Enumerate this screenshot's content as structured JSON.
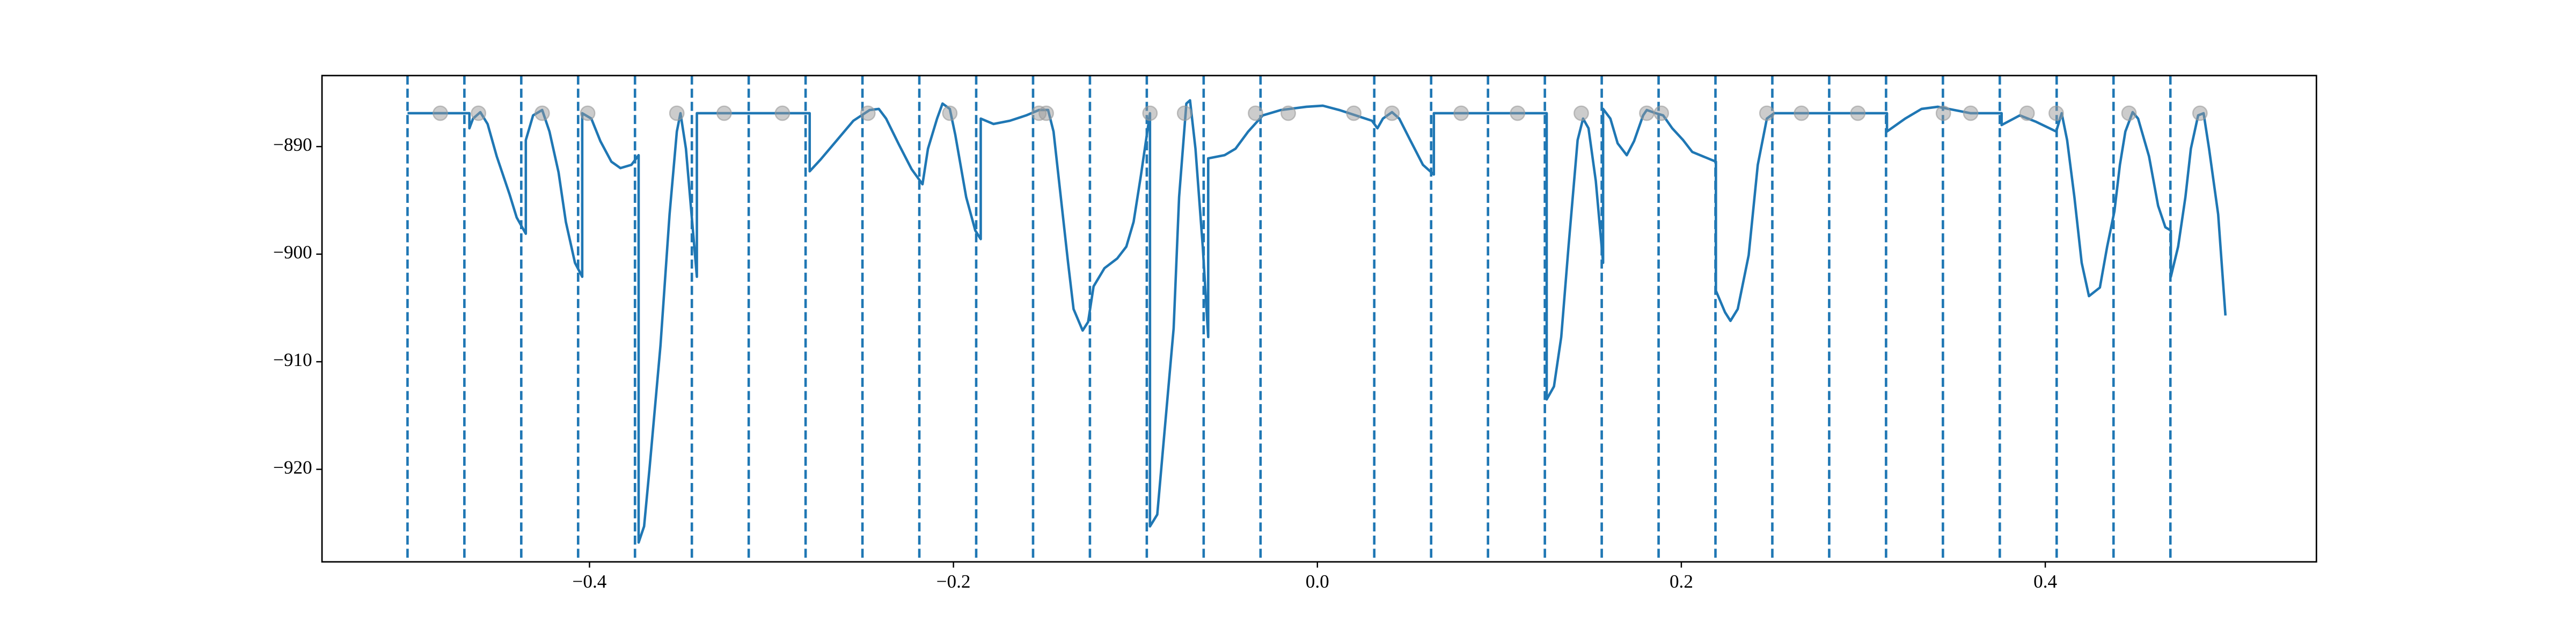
{
  "chart_data": {
    "type": "line",
    "xlim": [
      -0.547,
      0.549
    ],
    "ylim": [
      -928.6,
      -883.4
    ],
    "xticks": [
      {
        "value": -0.4,
        "label": "−0.4"
      },
      {
        "value": -0.2,
        "label": "−0.2"
      },
      {
        "value": 0.0,
        "label": "0.0"
      },
      0.2,
      0.4
    ],
    "yticks": [
      {
        "value": -890,
        "label": "−890"
      },
      {
        "value": -900,
        "label": "−900"
      },
      {
        "value": -910,
        "label": "−910"
      },
      {
        "value": -920,
        "label": "−920"
      }
    ],
    "vlines": {
      "color": "#1f77b4",
      "style": "dashed",
      "x": [
        -0.5,
        -0.46875,
        -0.4375,
        -0.40625,
        -0.375,
        -0.34375,
        -0.3125,
        -0.28125,
        -0.25,
        -0.21875,
        -0.1875,
        -0.15625,
        -0.125,
        -0.09375,
        -0.0625,
        -0.03125,
        0.03125,
        0.0625,
        0.09375,
        0.125,
        0.15625,
        0.1875,
        0.21875,
        0.25,
        0.28125,
        0.3125,
        0.34375,
        0.375,
        0.40625,
        0.4375,
        0.46875
      ]
    },
    "series": [
      {
        "type": "line",
        "color": "#1f77b4",
        "x": [
          -0.5,
          -0.466,
          -0.466,
          -0.464,
          -0.46,
          -0.456,
          -0.451,
          -0.444,
          -0.44,
          -0.435,
          -0.435,
          -0.431,
          -0.426,
          -0.422,
          -0.417,
          -0.413,
          -0.408,
          -0.404,
          -0.404,
          -0.399,
          -0.394,
          -0.388,
          -0.383,
          -0.377,
          -0.373,
          -0.373,
          -0.37,
          -0.367,
          -0.361,
          -0.356,
          -0.352,
          -0.35,
          -0.347,
          -0.341,
          -0.341,
          -0.279,
          -0.279,
          -0.273,
          -0.264,
          -0.255,
          -0.246,
          -0.241,
          -0.237,
          -0.23,
          -0.223,
          -0.217,
          -0.214,
          -0.209,
          -0.206,
          -0.202,
          -0.199,
          -0.193,
          -0.188,
          -0.185,
          -0.185,
          -0.178,
          -0.169,
          -0.16,
          -0.153,
          -0.148,
          -0.145,
          -0.141,
          -0.137,
          -0.134,
          -0.129,
          -0.126,
          -0.123,
          -0.117,
          -0.11,
          -0.105,
          -0.101,
          -0.097,
          -0.092,
          -0.092,
          -0.088,
          -0.085,
          -0.079,
          -0.076,
          -0.072,
          -0.07,
          -0.067,
          -0.063,
          -0.06,
          -0.06,
          -0.051,
          -0.045,
          -0.038,
          -0.03,
          -0.02,
          -0.006,
          0.003,
          0.012,
          0.021,
          0.03,
          0.033,
          0.036,
          0.041,
          0.045,
          0.051,
          0.058,
          0.064,
          0.064,
          0.126,
          0.126,
          0.13,
          0.134,
          0.138,
          0.143,
          0.146,
          0.149,
          0.153,
          0.157,
          0.157,
          0.161,
          0.165,
          0.17,
          0.174,
          0.179,
          0.181,
          0.186,
          0.19,
          0.195,
          0.201,
          0.206,
          0.219,
          0.219,
          0.224,
          0.227,
          0.231,
          0.237,
          0.242,
          0.247,
          0.251,
          0.313,
          0.313,
          0.323,
          0.332,
          0.341,
          0.35,
          0.359,
          0.376,
          0.376,
          0.386,
          0.395,
          0.406,
          0.409,
          0.412,
          0.416,
          0.42,
          0.424,
          0.43,
          0.434,
          0.438,
          0.441,
          0.444,
          0.448,
          0.451,
          0.457,
          0.462,
          0.466,
          0.469,
          0.469,
          0.473,
          0.477,
          0.48,
          0.484,
          0.487,
          0.49,
          0.495,
          0.499
        ],
        "values": [
          -886.9,
          -886.9,
          -888.3,
          -887.4,
          -886.8,
          -887.9,
          -890.9,
          -894.4,
          -896.6,
          -898.1,
          -889.4,
          -887.1,
          -886.6,
          -888.6,
          -892.4,
          -897.0,
          -900.8,
          -902.1,
          -886.9,
          -887.4,
          -889.5,
          -891.4,
          -892.0,
          -891.7,
          -890.8,
          -926.8,
          -925.3,
          -919.9,
          -908.5,
          -896.3,
          -888.6,
          -886.9,
          -890.2,
          -902.1,
          -886.9,
          -886.9,
          -892.3,
          -891.2,
          -889.4,
          -887.6,
          -886.6,
          -886.5,
          -887.4,
          -889.8,
          -892.1,
          -893.5,
          -890.2,
          -887.4,
          -886.0,
          -886.5,
          -888.9,
          -894.7,
          -897.8,
          -898.6,
          -887.4,
          -887.9,
          -887.6,
          -887.1,
          -886.6,
          -886.6,
          -888.6,
          -894.7,
          -900.8,
          -905.1,
          -907.1,
          -906.3,
          -903.0,
          -901.3,
          -900.4,
          -899.3,
          -897.0,
          -892.7,
          -886.9,
          -925.3,
          -924.2,
          -918.4,
          -906.9,
          -894.7,
          -886.0,
          -885.7,
          -890.2,
          -899.3,
          -907.7,
          -891.1,
          -890.8,
          -890.2,
          -888.6,
          -887.1,
          -886.6,
          -886.3,
          -886.2,
          -886.6,
          -887.1,
          -887.6,
          -888.3,
          -887.4,
          -886.8,
          -887.4,
          -889.4,
          -891.7,
          -892.6,
          -886.9,
          -886.9,
          -913.5,
          -912.3,
          -907.7,
          -899.3,
          -889.4,
          -887.4,
          -888.3,
          -893.2,
          -900.8,
          -886.5,
          -887.4,
          -889.7,
          -890.8,
          -889.5,
          -887.1,
          -886.6,
          -886.9,
          -887.1,
          -888.3,
          -889.4,
          -890.5,
          -891.4,
          -903.4,
          -905.4,
          -906.2,
          -905.1,
          -900.1,
          -891.7,
          -887.4,
          -886.9,
          -886.9,
          -888.6,
          -887.4,
          -886.5,
          -886.3,
          -886.6,
          -886.9,
          -886.9,
          -888.0,
          -887.1,
          -887.7,
          -888.6,
          -886.9,
          -889.4,
          -894.7,
          -900.8,
          -903.9,
          -903.1,
          -899.3,
          -896.0,
          -891.7,
          -888.6,
          -886.8,
          -887.4,
          -890.9,
          -895.5,
          -897.5,
          -897.8,
          -902.1,
          -899.3,
          -894.7,
          -890.2,
          -887.1,
          -886.9,
          -890.2,
          -896.3,
          -905.7
        ]
      },
      {
        "type": "scatter",
        "color": "#999999",
        "x": [
          -0.482,
          -0.461,
          -0.426,
          -0.401,
          -0.352,
          -0.326,
          -0.294,
          -0.247,
          -0.202,
          -0.153,
          -0.149,
          -0.092,
          -0.073,
          -0.034,
          -0.016,
          0.02,
          0.041,
          0.079,
          0.11,
          0.145,
          0.181,
          0.189,
          0.247,
          0.266,
          0.297,
          0.344,
          0.359,
          0.39,
          0.406,
          0.446,
          0.485
        ],
        "values": [
          -886.9,
          -886.9,
          -886.9,
          -886.9,
          -886.9,
          -886.9,
          -886.9,
          -886.9,
          -886.9,
          -886.9,
          -886.9,
          -886.9,
          -886.9,
          -886.9,
          -886.9,
          -886.9,
          -886.9,
          -886.9,
          -886.9,
          -886.9,
          -886.9,
          -886.9,
          -886.9,
          -886.9,
          -886.9,
          -886.9,
          -886.9,
          -886.9,
          -886.9,
          -886.9,
          -886.9
        ]
      }
    ]
  }
}
